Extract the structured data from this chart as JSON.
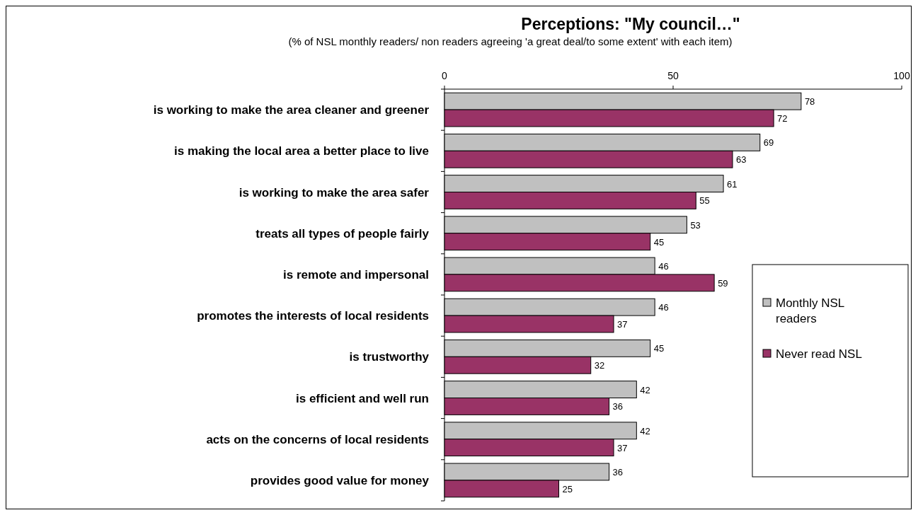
{
  "chart_data": {
    "type": "bar",
    "orientation": "horizontal",
    "title": "Perceptions: \"My council…\"",
    "subtitle": "(% of NSL monthly readers/ non readers agreeing 'a great deal/to some extent' with each item)",
    "categories": [
      "is working to make the area cleaner and greener",
      "is making the local area a better place to live",
      "is working to make the area safer",
      "treats all types of people fairly",
      "is remote and impersonal",
      "promotes the interests of local residents",
      "is trustworthy",
      "is efficient and well run",
      "acts on the concerns of local residents",
      "provides good value for money"
    ],
    "series": [
      {
        "name": "Monthly NSL readers",
        "color": "#c0c0c0",
        "values": [
          78,
          69,
          61,
          53,
          46,
          46,
          45,
          42,
          42,
          36
        ]
      },
      {
        "name": "Never read NSL",
        "color": "#993366",
        "values": [
          72,
          63,
          55,
          45,
          59,
          37,
          32,
          36,
          37,
          25
        ]
      }
    ],
    "xlim": [
      0,
      100
    ],
    "xticks": [
      0,
      50,
      100
    ],
    "data_labels": true,
    "legend": "right",
    "grid": false
  }
}
